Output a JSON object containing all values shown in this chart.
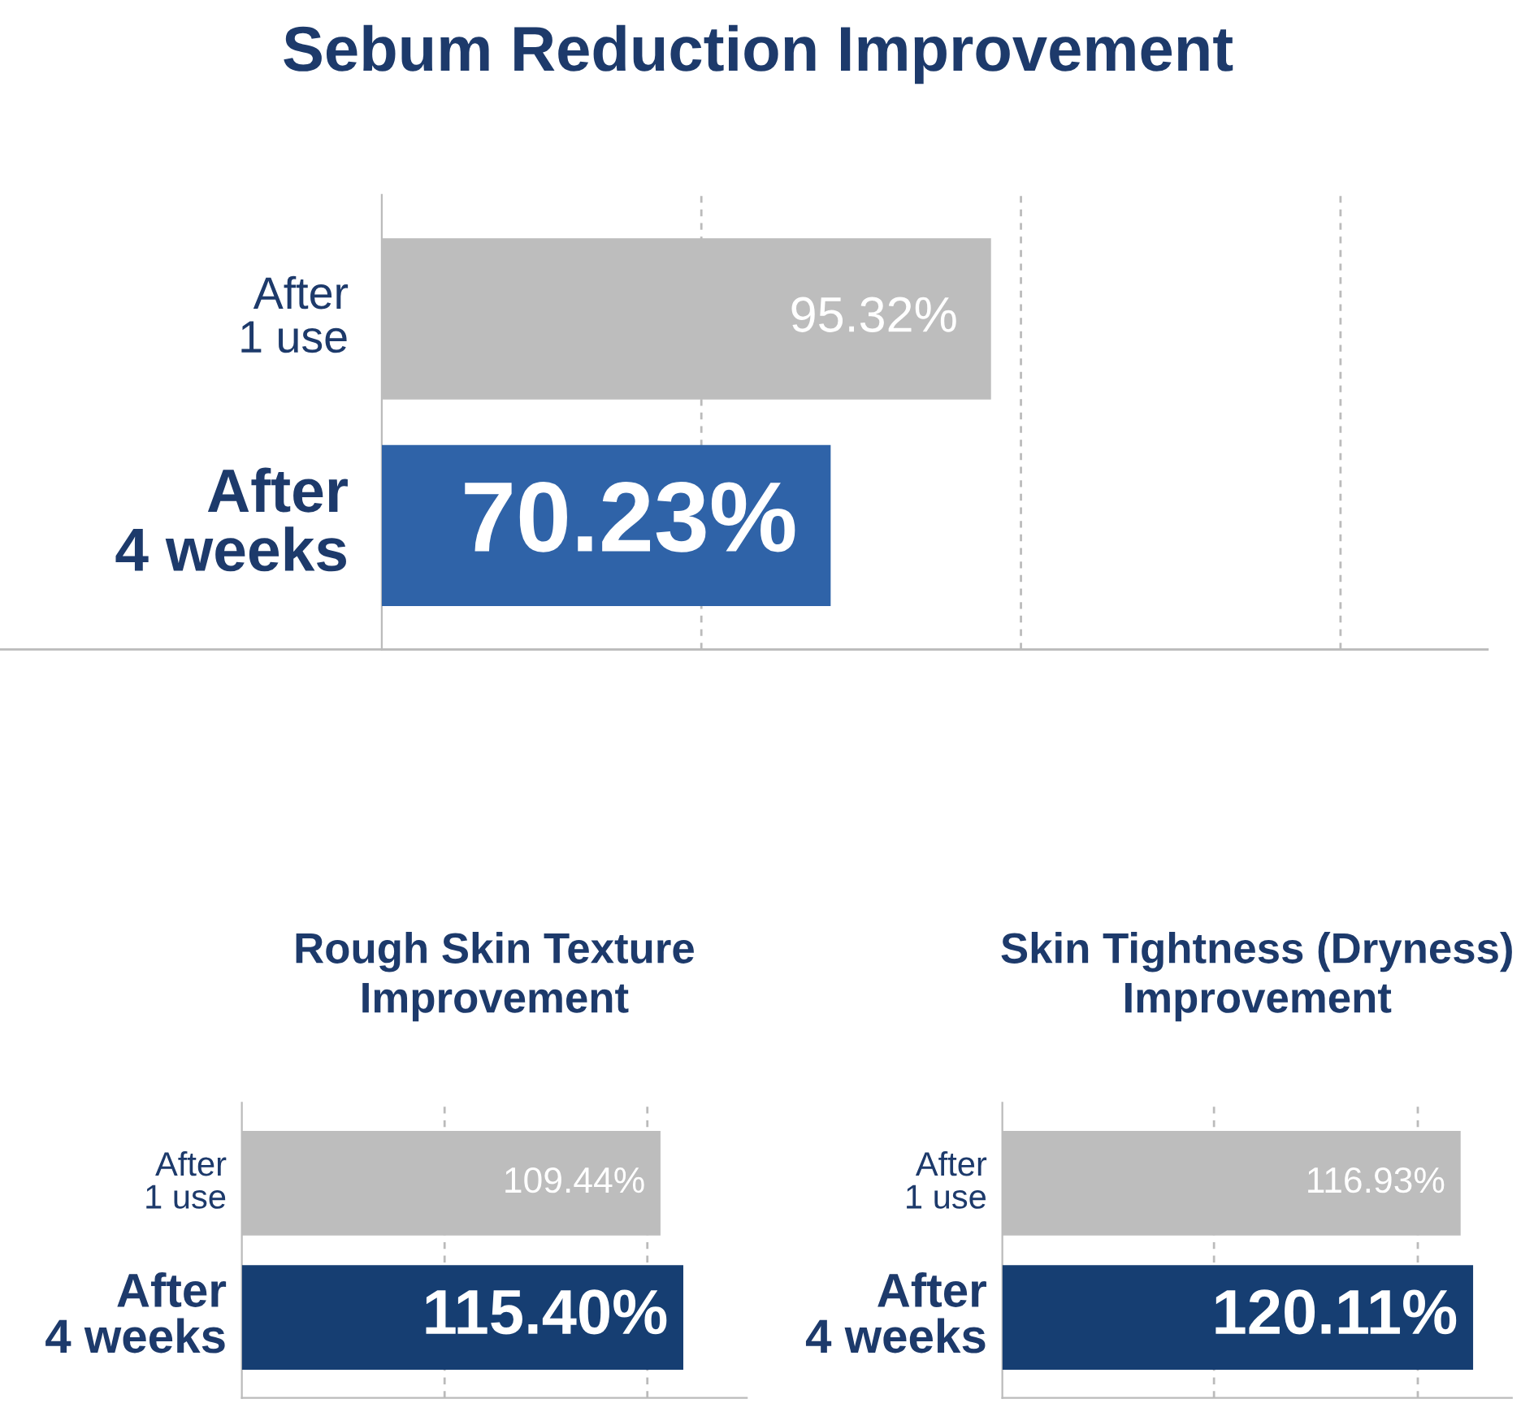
{
  "chart_data": [
    {
      "type": "bar",
      "orientation": "horizontal",
      "title": "Sebum Reduction Improvement",
      "categories": [
        "After\n1 use",
        "After\n4 weeks"
      ],
      "values": [
        95.32,
        70.23
      ],
      "colors": [
        "#bdbdbd",
        "#2f63a8"
      ],
      "value_labels": [
        "95.32%",
        "70.23%"
      ],
      "xlim": [
        0,
        173
      ],
      "xticks": [
        {
          "value": 50,
          "label": null
        },
        {
          "value": 100,
          "label": null
        },
        {
          "value": 150,
          "label": null
        }
      ],
      "grid": "x"
    },
    {
      "type": "bar",
      "orientation": "horizontal",
      "title": "Rough Skin Texture\nImprovement",
      "categories": [
        "After\n1 use",
        "After\n4 weeks"
      ],
      "values": [
        109.44,
        115.4
      ],
      "colors": [
        "#bdbdbd",
        "#163e72"
      ],
      "value_labels": [
        "109.44%",
        "115.40%"
      ],
      "xlim": [
        0,
        132
      ],
      "xticks": [
        {
          "value": 53,
          "label": null
        },
        {
          "value": 106,
          "label": null
        }
      ],
      "grid": "x"
    },
    {
      "type": "bar",
      "orientation": "horizontal",
      "title": "Skin Tightness (Dryness)\nImprovement",
      "categories": [
        "After\n1 use",
        "After\n4 weeks"
      ],
      "values": [
        116.93,
        120.11
      ],
      "colors": [
        "#bdbdbd",
        "#163e72"
      ],
      "value_labels": [
        "116.93%",
        "120.11%"
      ],
      "xlim": [
        0,
        130
      ],
      "xticks": [
        {
          "value": 54,
          "label": null
        },
        {
          "value": 106,
          "label": null
        }
      ],
      "grid": "x"
    }
  ]
}
